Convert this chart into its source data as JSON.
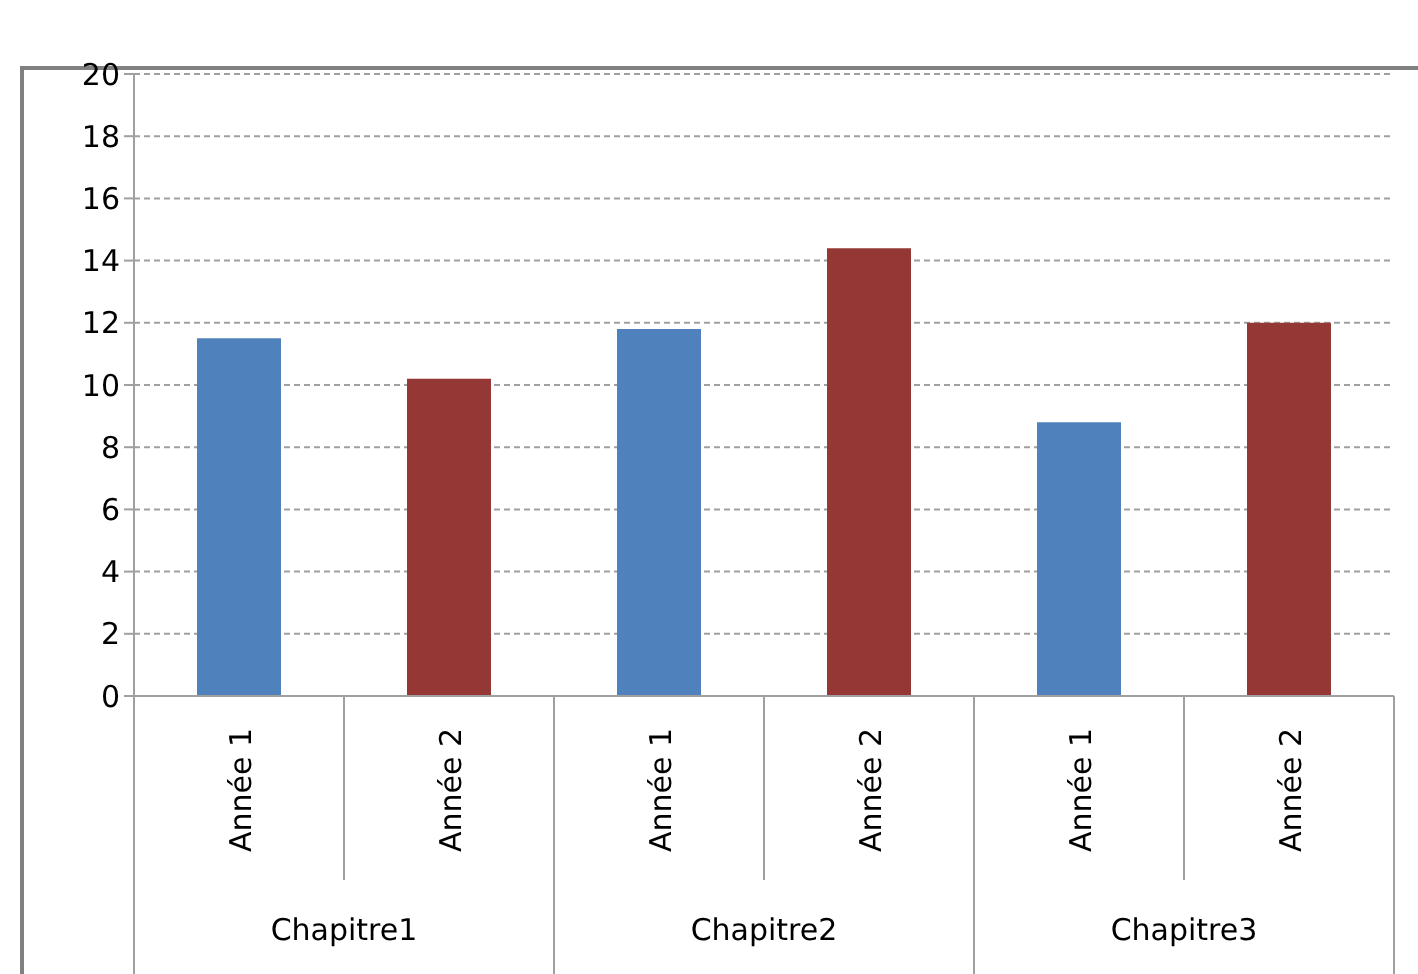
{
  "chart_data": {
    "type": "bar",
    "categories": [
      "Année 1",
      "Année 2",
      "Année 1",
      "Année 2",
      "Année 1",
      "Année 2"
    ],
    "values": [
      11.5,
      10.2,
      11.8,
      14.4,
      8.8,
      12.0
    ],
    "colors": [
      "#4f81bd",
      "#953735",
      "#4f81bd",
      "#953735",
      "#4f81bd",
      "#953735"
    ],
    "ylim": [
      0,
      20
    ],
    "yticks": [
      0,
      2,
      4,
      6,
      8,
      10,
      12,
      14,
      16,
      18,
      20
    ],
    "grid": "y",
    "annotations": [
      "Chapitre1",
      "Chapitre2",
      "Chapitre3"
    ]
  }
}
